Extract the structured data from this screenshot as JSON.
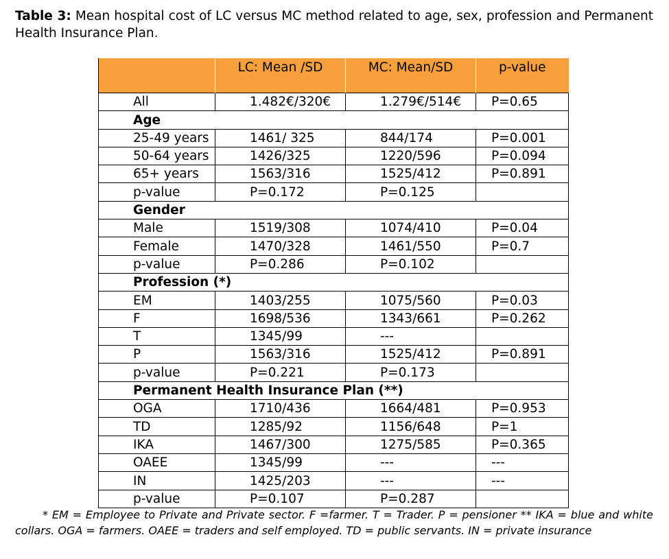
{
  "caption": {
    "label": "Table 3:",
    "text": "Mean hospital cost of LC versus MC method related to age, sex, profession and Permanent Health Insurance Plan."
  },
  "table": {
    "headers": [
      "",
      "LC: Mean /SD",
      "MC: Mean/SD",
      "p-value"
    ],
    "rows": [
      {
        "type": "row",
        "cells": [
          "All",
          "1.482€/320€",
          "1.279€/514€",
          "P=0.65"
        ]
      },
      {
        "type": "section",
        "cells": [
          "Age"
        ]
      },
      {
        "type": "row",
        "cells": [
          "25-49 years",
          "1461/ 325",
          "844/174",
          "P=0.001"
        ]
      },
      {
        "type": "row",
        "cells": [
          "50-64 years",
          "1426/325",
          "1220/596",
          "P=0.094"
        ]
      },
      {
        "type": "row",
        "cells": [
          "65+ years",
          "1563/316",
          "1525/412",
          "P=0.891"
        ]
      },
      {
        "type": "row",
        "cells": [
          "p-value",
          "P=0.172",
          "P=0.125",
          ""
        ]
      },
      {
        "type": "section",
        "cells": [
          "Gender"
        ]
      },
      {
        "type": "row",
        "cells": [
          "Male",
          "1519/308",
          "1074/410",
          "P=0.04"
        ]
      },
      {
        "type": "row",
        "cells": [
          "Female",
          "1470/328",
          "1461/550",
          "P=0.7"
        ]
      },
      {
        "type": "row",
        "cells": [
          "p-value",
          "P=0.286",
          "P=0.102",
          ""
        ]
      },
      {
        "type": "section",
        "cells": [
          "Profession (*)"
        ]
      },
      {
        "type": "row",
        "cells": [
          "EM",
          "1403/255",
          "1075/560",
          "P=0.03"
        ]
      },
      {
        "type": "row",
        "cells": [
          "F",
          "1698/536",
          "1343/661",
          "P=0.262"
        ]
      },
      {
        "type": "row",
        "cells": [
          "T",
          "1345/99",
          "---",
          ""
        ]
      },
      {
        "type": "row",
        "cells": [
          "P",
          "1563/316",
          "1525/412",
          "P=0.891"
        ]
      },
      {
        "type": "row",
        "cells": [
          "p-value",
          "P=0.221",
          "P=0.173",
          ""
        ]
      },
      {
        "type": "section",
        "cells": [
          "Permanent Health Insurance Plan (**)"
        ]
      },
      {
        "type": "row",
        "cells": [
          "OGA",
          "1710/436",
          "1664/481",
          "P=0.953"
        ]
      },
      {
        "type": "row",
        "cells": [
          "TD",
          "1285/92",
          "1156/648",
          "P=1"
        ]
      },
      {
        "type": "row",
        "cells": [
          "IKA",
          "1467/300",
          "1275/585",
          "P=0.365"
        ]
      },
      {
        "type": "row",
        "cells": [
          "OAEE",
          "1345/99",
          "---",
          "---"
        ]
      },
      {
        "type": "row",
        "cells": [
          "IN",
          "1425/203",
          "---",
          "---"
        ]
      },
      {
        "type": "row",
        "cells": [
          "p-value",
          "P=0.107",
          "P=0.287",
          ""
        ]
      }
    ]
  },
  "footnote": "* EM = Employee to Private and Private sector. F =farmer. T = Trader. P = pensioner    ** IKA = blue and white collars. OGA = farmers. OAEE = traders and self employed. TD = public servants. IN = private insurance",
  "colors": {
    "header_bg": "#f7a03c"
  }
}
